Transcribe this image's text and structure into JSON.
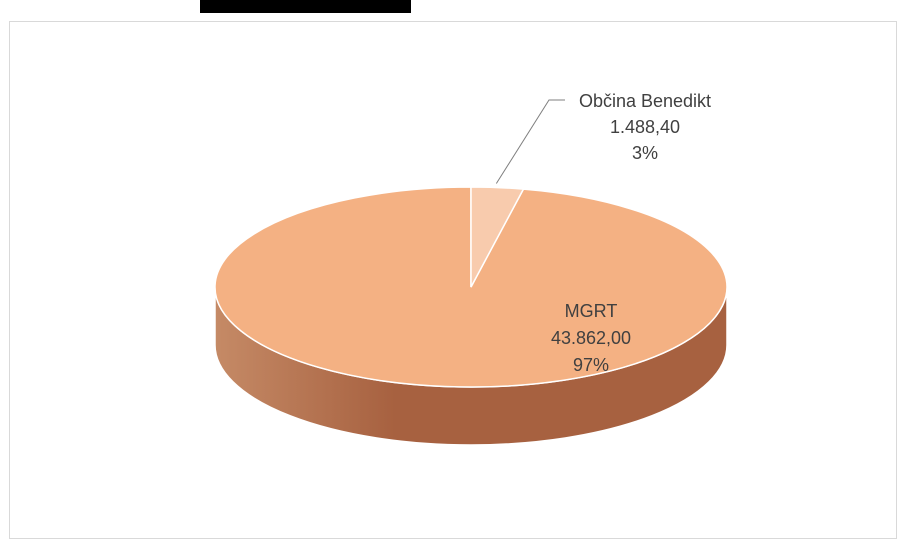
{
  "chart_data": {
    "type": "pie",
    "variant": "3d",
    "slices": [
      {
        "label": "Občina Benedikt",
        "value_text": "1.488,40",
        "percent_text": "3%",
        "value": 1488.4,
        "color": "#f8cbad"
      },
      {
        "label": "MGRT",
        "value_text": "43.862,00",
        "percent_text": "97%",
        "value": 43862.0,
        "color": "#f4b183"
      }
    ],
    "side_color_dark": "#a76140",
    "side_color_light": "#c58a66",
    "leader_line_color": "#7f7f7f"
  }
}
